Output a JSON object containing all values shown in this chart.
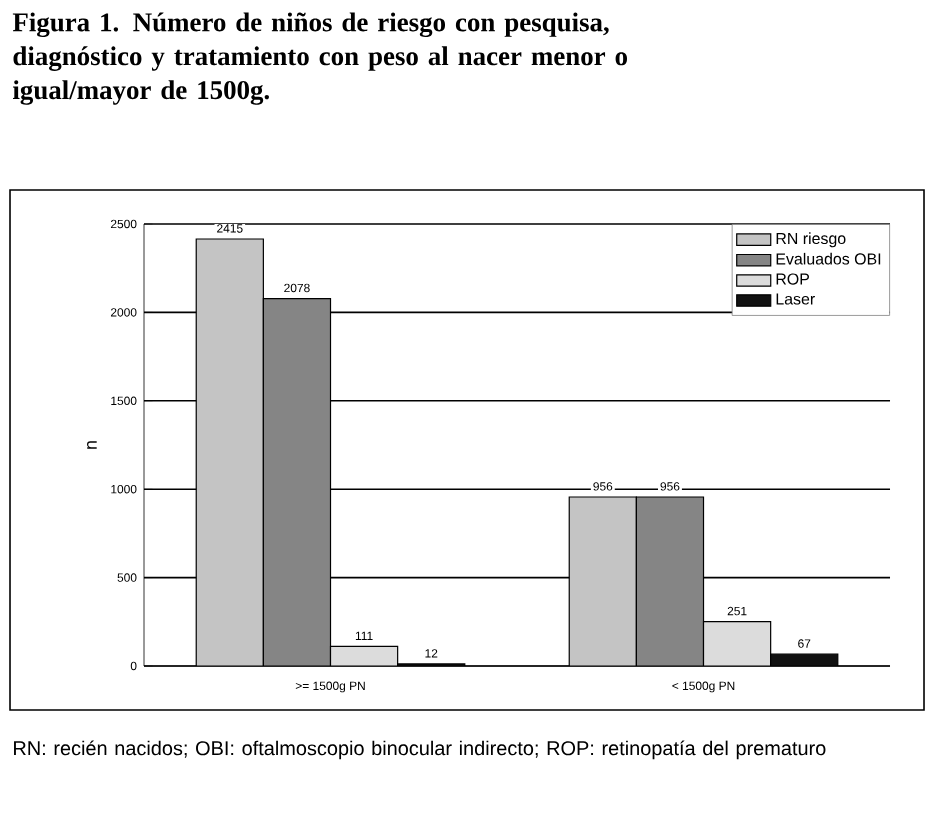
{
  "chart_data": {
    "type": "bar",
    "title": "Figura 1. Número de niños  de riesgo con pesquisa, diagnóstico y tratamiento con peso al nacer  menor o igual/mayor de 1500g.",
    "ylabel": "n",
    "categories": [
      ">= 1500g PN",
      "< 1500g PN"
    ],
    "series": [
      {
        "name": "RN riesgo",
        "color": "#c4c4c4",
        "values": [
          2415,
          956
        ]
      },
      {
        "name": "Evaluados OBI",
        "color": "#858585",
        "values": [
          2078,
          956
        ]
      },
      {
        "name": "ROP",
        "color": "#dcdcdc",
        "values": [
          111,
          251
        ]
      },
      {
        "name": "Laser",
        "color": "#111111",
        "values": [
          12,
          67
        ]
      }
    ],
    "ylim": [
      0,
      2500
    ],
    "yticks": [
      0,
      500,
      1000,
      1500,
      2000,
      2500
    ],
    "grid": "y",
    "legend": "top right",
    "data_labels": true,
    "annotations": [
      "RN: recién nacidos; OBI: oftalmoscopio binocular indirecto; ROP: retinopatía del prematuro"
    ]
  }
}
